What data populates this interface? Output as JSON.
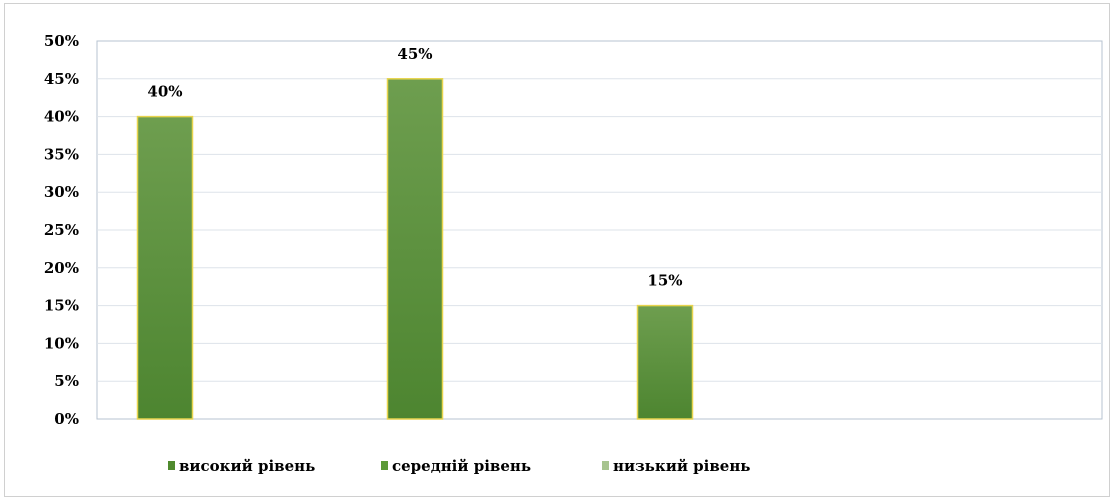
{
  "chart_data": {
    "type": "bar",
    "categories": [
      "високий рівень",
      "середній рівень",
      "низький рівень"
    ],
    "values": [
      40,
      45,
      15
    ],
    "value_labels": [
      "40%",
      "45%",
      "15%"
    ],
    "ylim": [
      0,
      50
    ],
    "y_ticks": [
      0,
      5,
      10,
      15,
      20,
      25,
      30,
      35,
      40,
      45,
      50
    ],
    "y_tick_labels": [
      "0%",
      "5%",
      "10%",
      "15%",
      "20%",
      "25%",
      "30%",
      "35%",
      "40%",
      "45%",
      "50%"
    ],
    "grid": true,
    "legend": {
      "placement": "bottom",
      "entries": [
        "високий рівень",
        "середній рівень",
        "низький рівень"
      ]
    },
    "colors": {
      "bar_fill_top": "#6e9e4f",
      "bar_fill_bottom": "#4d8530",
      "bar_border": "#e8d44d",
      "legend_high": "#4f8a2e",
      "legend_mid": "#5c9a38",
      "legend_low": "#a7c48f",
      "grid": "#dde3ea",
      "axis": "#b7c3d0"
    }
  }
}
